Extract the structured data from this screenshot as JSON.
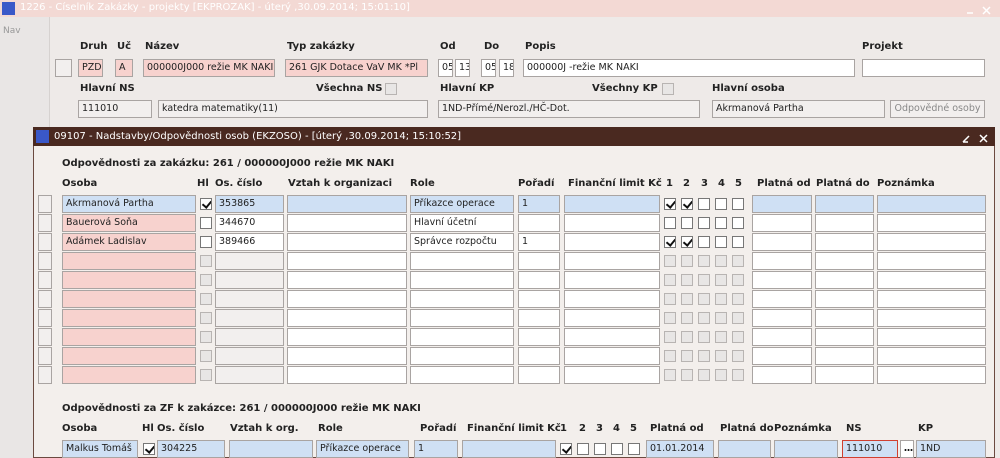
{
  "window": {
    "title": "1226 - Číselník Zakázky - projekty [EKPROZAK] - úterý ,30.09.2014; 15:01:10]",
    "nav": "Nav"
  },
  "header": {
    "druh_label": "Druh",
    "druh": "PZD",
    "uc_label": "Úč",
    "uc": "A",
    "nazev_label": "Název",
    "nazev": "000000J000 režie MK NAKI",
    "typ_label": "Typ zakázky",
    "typ": "261 GJK Dotace VaV MK *Pl",
    "od_label": "Od",
    "od": [
      "05",
      "13"
    ],
    "do_label": "Do",
    "do": [
      "05",
      "18"
    ],
    "popis_label": "Popis",
    "popis": "000000J -režie MK NAKI",
    "projekt_label": "Projekt",
    "hlavni_ns_label": "Hlavní NS",
    "hlavni_ns": "111010",
    "ns_name": "katedra matematiky(11)",
    "vsechna_ns_label": "Všechna NS",
    "hlavni_kp_label": "Hlavní KP",
    "hlavni_kp": "1ND-Přímé/Nerozl./HČ-Dot.",
    "vsechny_kp_label": "Všechny KP",
    "hlavni_osoba_label": "Hlavní osoba",
    "hlavni_osoba": "Akrmanová Partha",
    "odpovedne_osoby_button": "Odpovědné osoby"
  },
  "dialog": {
    "title": "09107 - Nadstavby/Odpovědnosti osob (EKZOSO) - [úterý ,30.09.2014; 15:10:52]",
    "section1": {
      "title": "Odpovědnosti za zakázku: 261 / 000000J000 režie MK NAKI",
      "columns": [
        "Osoba",
        "Hl",
        "Os. číslo",
        "Vztah k organizaci",
        "Role",
        "Pořadí",
        "Finanční limit Kč",
        "1",
        "2",
        "3",
        "4",
        "5",
        "Platná od",
        "Platná do",
        "Poznámka"
      ],
      "rows": [
        {
          "osoba": "Akrmanová Partha",
          "hl": true,
          "os_cislo": "353865",
          "role": "Příkazce operace",
          "poradi": 1,
          "checks": [
            true,
            true,
            false,
            false,
            false
          ]
        },
        {
          "osoba": "Bauerová Soňa",
          "hl": false,
          "os_cislo": "344670",
          "role": "Hlavní účetní",
          "checks": [
            false,
            false,
            false,
            false,
            false
          ]
        },
        {
          "osoba": "Adámek Ladislav",
          "hl": false,
          "os_cislo": "389466",
          "role": "Správce rozpočtu",
          "poradi": 1,
          "checks": [
            true,
            true,
            false,
            false,
            false
          ]
        }
      ]
    },
    "section2": {
      "title": "Odpovědnosti za ZF k zakázce: 261 / 000000J000 režie MK NAKI",
      "columns": [
        "Osoba",
        "Hl",
        "Os. číslo",
        "Vztah k org.",
        "Role",
        "Pořadí",
        "Finanční limit Kč",
        "1",
        "2",
        "3",
        "4",
        "5",
        "Platná od",
        "Platná do",
        "Poznámka",
        "NS",
        "KP"
      ],
      "rows": [
        {
          "osoba": "Malkus Tomáš",
          "hl": true,
          "os_cislo": "304225",
          "role": "Příkazce operace",
          "poradi": 1,
          "checks": [
            true,
            false,
            false,
            false,
            false
          ],
          "platna_od": "01.01.2014",
          "ns": "111010",
          "kp": "1ND"
        }
      ]
    }
  }
}
